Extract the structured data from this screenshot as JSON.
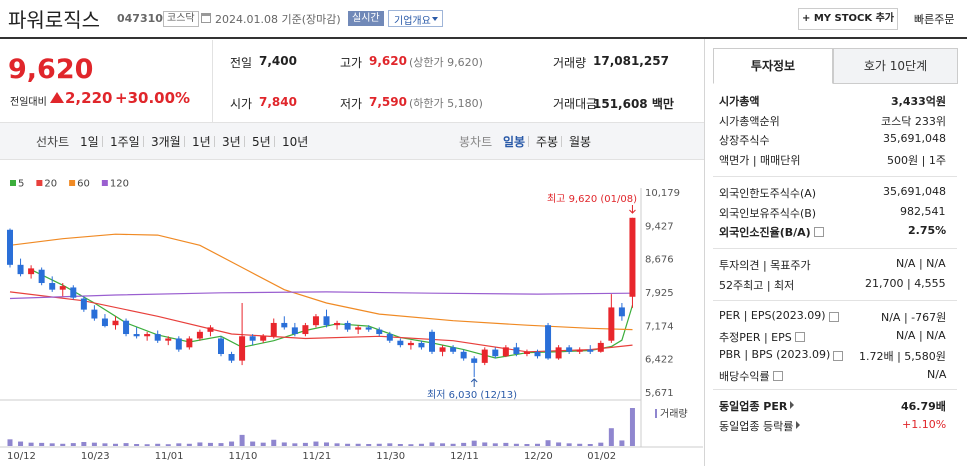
{
  "header": {
    "title": "파워로직스",
    "code": "047310",
    "market": "코스닥",
    "date": "2024.01.08 기준(장마감)",
    "realtime": "실시간",
    "company_menu": "기업개요",
    "mystock": "+ MY STOCK 추가",
    "quick_order": "빠른주문"
  },
  "price": {
    "current": "9,620",
    "change_label": "전일대비",
    "change": "2,220",
    "change_pct": "+30.00%"
  },
  "stats": [
    {
      "label": "전일",
      "value": "7,400"
    },
    {
      "label": "고가",
      "value": "9,620",
      "note": "(상한가 9,620)",
      "red": true
    },
    {
      "label": "거래량",
      "value": "17,081,257"
    },
    {
      "label": "시가",
      "value": "7,840",
      "red": true
    },
    {
      "label": "저가",
      "value": "7,590",
      "note": "(하한가 5,180)",
      "red": true
    },
    {
      "label": "거래대금",
      "value": "151,608 백만"
    }
  ],
  "toolbar": {
    "line_chart": "선차트",
    "line_periods": [
      "1일",
      "1주일",
      "3개월",
      "1년",
      "3년",
      "5년",
      "10년"
    ],
    "candle_chart": "봉차트",
    "candle_periods": [
      "일봉",
      "주봉",
      "월봉"
    ],
    "active_candle": 0
  },
  "chart_data": {
    "type": "candlestick",
    "categories": [
      "10/12",
      null,
      null,
      null,
      null,
      null,
      null,
      "10/23",
      null,
      null,
      null,
      null,
      null,
      null,
      "11/01",
      null,
      null,
      null,
      null,
      null,
      null,
      "11/10",
      null,
      null,
      null,
      null,
      null,
      null,
      "11/21",
      null,
      null,
      null,
      null,
      null,
      null,
      "11/30",
      null,
      null,
      null,
      null,
      null,
      null,
      "12/11",
      null,
      null,
      null,
      null,
      null,
      null,
      "12/20",
      null,
      null,
      null,
      null,
      null,
      "01/02",
      null,
      null,
      null,
      null
    ],
    "candles": {
      "open": [
        9350,
        8560,
        8350,
        8450,
        8150,
        8000,
        8050,
        7800,
        7550,
        7350,
        7200,
        7300,
        7000,
        6950,
        7000,
        6850,
        6900,
        6700,
        6900,
        7050,
        6900,
        6550,
        6400,
        6950,
        6850,
        6950,
        7250,
        7150,
        7000,
        7200,
        7400,
        7200,
        7250,
        7100,
        7150,
        7100,
        7000,
        6850,
        6750,
        6800,
        7050,
        6600,
        6700,
        6600,
        6450,
        6350,
        6650,
        6500,
        6700,
        6550,
        6600,
        7200,
        6450,
        6700,
        6600,
        6650,
        6600,
        6850,
        7600,
        7840
      ],
      "high": [
        9380,
        8700,
        8550,
        8500,
        8300,
        8150,
        8100,
        7850,
        7650,
        7450,
        7400,
        7350,
        7150,
        7050,
        7080,
        6950,
        6950,
        6950,
        7100,
        7200,
        6950,
        6600,
        7700,
        7000,
        7000,
        7350,
        7400,
        7250,
        7250,
        7450,
        7550,
        7300,
        7300,
        7200,
        7200,
        7150,
        7050,
        6900,
        6850,
        6850,
        7100,
        6750,
        6750,
        6650,
        6500,
        6700,
        6700,
        6750,
        6800,
        6650,
        6650,
        7250,
        6750,
        6750,
        6700,
        6750,
        6850,
        7900,
        7700,
        9620
      ],
      "low": [
        8500,
        8300,
        8250,
        8100,
        7950,
        7850,
        7780,
        7500,
        7300,
        7150,
        7100,
        6950,
        6900,
        6850,
        6800,
        6750,
        6600,
        6650,
        6850,
        6950,
        6500,
        6350,
        6300,
        6750,
        6800,
        6900,
        7100,
        6950,
        6950,
        7150,
        7150,
        7100,
        7050,
        7000,
        7050,
        6950,
        6800,
        6700,
        6650,
        6650,
        6550,
        6500,
        6550,
        6400,
        6030,
        6300,
        6450,
        6480,
        6500,
        6500,
        6450,
        6420,
        6420,
        6550,
        6550,
        6550,
        6580,
        6800,
        7300,
        7590
      ],
      "close": [
        8560,
        8350,
        8480,
        8150,
        8000,
        8080,
        7820,
        7550,
        7350,
        7180,
        7300,
        7000,
        6950,
        7000,
        6850,
        6900,
        6650,
        6900,
        7050,
        7150,
        6550,
        6400,
        6950,
        6850,
        6950,
        7250,
        7150,
        7000,
        7200,
        7400,
        7200,
        7250,
        7100,
        7150,
        7100,
        7000,
        6850,
        6750,
        6800,
        6700,
        6600,
        6700,
        6600,
        6450,
        6350,
        6650,
        6500,
        6700,
        6550,
        6600,
        6500,
        6450,
        6700,
        6600,
        6650,
        6600,
        6800,
        7600,
        7400,
        9620
      ]
    },
    "up_color": "#e8262c",
    "down_color": "#2a6fd8",
    "ylim": [
      5671,
      10179
    ],
    "yticks": [
      {
        "value": 10179,
        "label": "10,179"
      },
      {
        "value": 9427,
        "label": "9,427"
      },
      {
        "value": 8676,
        "label": "8,676"
      },
      {
        "value": 7925,
        "label": "7,925"
      },
      {
        "value": 7174,
        "label": "7,174"
      },
      {
        "value": 6422,
        "label": "6,422"
      },
      {
        "value": 5671,
        "label": "5,671"
      }
    ],
    "moving_averages": [
      {
        "name": "5",
        "color": "#3cae3c",
        "x": [
          2,
          5,
          8,
          11,
          14,
          17,
          20,
          22,
          25,
          28,
          31,
          34,
          37,
          40,
          43,
          46,
          49,
          52,
          55,
          57,
          58,
          59
        ],
        "values": [
          8450,
          8100,
          7700,
          7250,
          6980,
          6820,
          6950,
          6700,
          6850,
          7080,
          7230,
          7180,
          6920,
          6800,
          6650,
          6460,
          6580,
          6600,
          6630,
          6720,
          6860,
          7650
        ]
      },
      {
        "name": "20",
        "color": "#e8403c",
        "x": [
          0,
          7,
          14,
          21,
          28,
          35,
          42,
          49,
          55,
          59
        ],
        "values": [
          7950,
          7750,
          7400,
          7000,
          6900,
          6950,
          6850,
          6600,
          6650,
          6750
        ]
      },
      {
        "name": "60",
        "color": "#f08a24",
        "x": [
          0,
          5,
          10,
          14,
          18,
          22,
          26,
          30,
          35,
          42,
          49,
          55,
          59
        ],
        "values": [
          9000,
          9150,
          9250,
          9230,
          9000,
          8500,
          8000,
          7700,
          7450,
          7300,
          7200,
          7130,
          7100
        ]
      },
      {
        "name": "120",
        "color": "#9a5fd0",
        "x": [
          0,
          10,
          20,
          30,
          40,
          50,
          59
        ],
        "values": [
          7800,
          7880,
          7930,
          7950,
          7920,
          7900,
          7920
        ]
      }
    ],
    "volume": {
      "name": "거래량",
      "color": "#8f86cf",
      "values": [
        3000000,
        2000000,
        1500000,
        1400000,
        1200000,
        1000000,
        1300000,
        1800000,
        1500000,
        1200000,
        1000000,
        1300000,
        900000,
        800000,
        1000000,
        800000,
        1200000,
        1000000,
        1600000,
        1400000,
        1300000,
        2000000,
        5000000,
        2000000,
        1500000,
        2800000,
        1600000,
        1200000,
        1400000,
        2000000,
        1600000,
        1200000,
        1000000,
        1000000,
        900000,
        1000000,
        1200000,
        900000,
        800000,
        1000000,
        1600000,
        1200000,
        1000000,
        1400000,
        2400000,
        1600000,
        1200000,
        1400000,
        1000000,
        900000,
        1000000,
        2600000,
        1600000,
        1200000,
        1000000,
        900000,
        1500000,
        8000000,
        2500000,
        17081257
      ]
    },
    "high_label": "최고 9,620 (01/08)",
    "low_label": "최저 6,030 (12/13)"
  },
  "info": {
    "tabs": [
      "투자정보",
      "호가 10단계"
    ],
    "active_tab": 0,
    "groups": [
      [
        {
          "label": "시가총액",
          "value": "3,433억원",
          "bold": true
        },
        {
          "label": "시가총액순위",
          "value": "코스닥 233위"
        },
        {
          "label": "상장주식수",
          "value": "35,691,048"
        },
        {
          "label": "액면가 | 매매단위",
          "value": "500원 | 1주"
        }
      ],
      [
        {
          "label": "외국인한도주식수(A)",
          "value": "35,691,048"
        },
        {
          "label": "외국인보유주식수(B)",
          "value": "982,541"
        },
        {
          "label": "외국인소진율(B/A)",
          "value": "2.75%",
          "bold": true,
          "help": true
        }
      ],
      [
        {
          "label": "투자의견 | 목표주가",
          "value": "N/A | N/A"
        },
        {
          "label": "52주최고 | 최저",
          "value": "21,700 | 4,555"
        }
      ],
      [
        {
          "label": "PER | EPS(2023.09)",
          "value": "N/A | -767원",
          "help": true
        },
        {
          "label": "추정PER | EPS",
          "value": "N/A | N/A",
          "help": true
        },
        {
          "label": "PBR | BPS (2023.09)",
          "value": "1.72배 | 5,580원",
          "help": true
        },
        {
          "label": "배당수익률",
          "value": "N/A",
          "help": true
        }
      ],
      [
        {
          "label": "동일업종 PER",
          "value": "46.79배",
          "bold": true,
          "arrow": true
        },
        {
          "label": "동일업종 등락률",
          "value": "+1.10%",
          "arrow": true,
          "color": "#e0262b"
        }
      ]
    ]
  }
}
